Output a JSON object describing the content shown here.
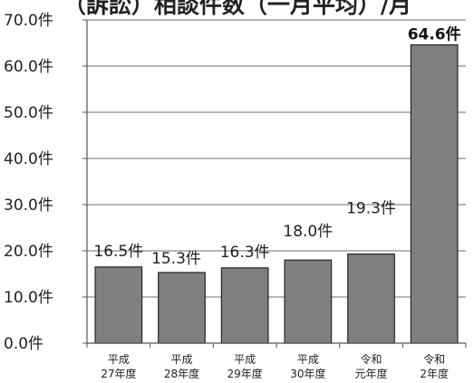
{
  "chart_data": {
    "type": "bar",
    "title": "（訴訟）相談件数（一月平均）/月",
    "categories": [
      [
        "平成",
        "27年度"
      ],
      [
        "平成",
        "28年度"
      ],
      [
        "平成",
        "29年度"
      ],
      [
        "平成",
        "30年度"
      ],
      [
        "令和",
        "元年度"
      ],
      [
        "令和",
        "2年度"
      ]
    ],
    "values": [
      16.5,
      15.3,
      16.3,
      18.0,
      19.3,
      64.6
    ],
    "data_labels": [
      "16.5件",
      "15.3件",
      "16.3件",
      "18.0件",
      "19.3件",
      "64.6件"
    ],
    "highlight_index": 5,
    "ylim": [
      0,
      70
    ],
    "yticks": [
      0,
      10,
      20,
      30,
      40,
      50,
      60,
      70
    ],
    "ytick_labels": [
      "0.0件",
      "10.0件",
      "20.0件",
      "30.0件",
      "40.0件",
      "50.0件",
      "60.0件",
      "70.0件"
    ],
    "grid": true,
    "bar_color": "#7f7f7f",
    "bar_edge_color": "#262626",
    "grid_color": "#8c8c8c"
  }
}
